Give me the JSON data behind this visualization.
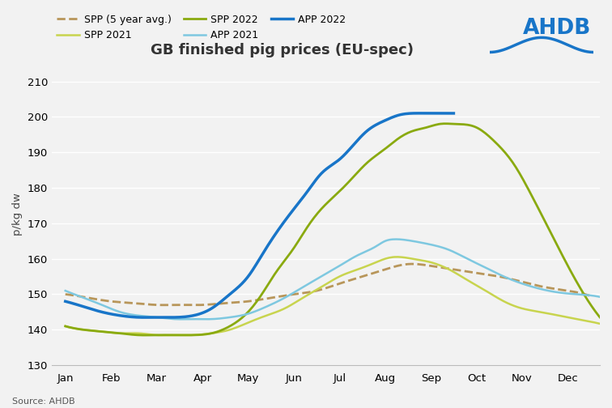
{
  "title": "GB finished pig prices (EU-spec)",
  "ylabel": "p/kg dw",
  "source": "Source: AHDB",
  "ylim": [
    130,
    215
  ],
  "yticks": [
    130,
    140,
    150,
    160,
    170,
    180,
    190,
    200,
    210
  ],
  "months": [
    "Jan",
    "Feb",
    "Mar",
    "Apr",
    "May",
    "Jun",
    "Jul",
    "Aug",
    "Sep",
    "Oct",
    "Nov",
    "Dec"
  ],
  "spp_5yr_x": [
    0,
    0.5,
    1.0,
    1.5,
    2.0,
    2.5,
    3.0,
    3.5,
    4.0,
    4.5,
    5.0,
    5.5,
    6.0,
    6.5,
    7.0,
    7.5,
    8.0,
    8.5,
    9.0,
    9.5,
    10.0,
    10.5,
    11.0,
    11.5
  ],
  "spp_5yr_y": [
    150,
    149,
    148,
    147.5,
    147,
    147,
    147,
    147.5,
    148,
    149,
    150,
    151,
    153,
    155,
    157,
    158.5,
    158,
    157,
    156,
    155,
    153.5,
    152,
    151,
    149.5
  ],
  "spp_2021_x": [
    0,
    0.4,
    0.8,
    1.2,
    1.6,
    2.0,
    2.4,
    2.8,
    3.2,
    3.6,
    4.0,
    4.4,
    4.8,
    5.2,
    5.6,
    6.0,
    6.4,
    6.8,
    7.0,
    7.2,
    7.6,
    8.0,
    8.4,
    8.8,
    9.2,
    9.6,
    10.0,
    10.4,
    10.8,
    11.2,
    11.6,
    11.9
  ],
  "spp_2021_y": [
    141,
    140,
    139.5,
    139,
    139,
    138.5,
    138.5,
    138.5,
    139,
    140,
    142,
    144,
    146,
    149,
    152,
    155,
    157,
    159,
    160,
    160.5,
    160,
    159,
    157,
    154,
    151,
    148,
    146,
    145,
    144,
    143,
    142,
    141
  ],
  "spp_2022_x": [
    0,
    0.4,
    0.8,
    1.2,
    1.6,
    2.0,
    2.4,
    2.8,
    3.2,
    3.6,
    4.0,
    4.3,
    4.6,
    5.0,
    5.3,
    5.6,
    6.0,
    6.3,
    6.6,
    7.0,
    7.3,
    7.6,
    7.9,
    8.2,
    8.5,
    9.0,
    9.4,
    9.8,
    10.2,
    10.6,
    11.0,
    11.4,
    11.8
  ],
  "spp_2022_y": [
    141,
    140,
    139.5,
    139,
    138.5,
    138.5,
    138.5,
    138.5,
    139,
    141,
    145,
    150,
    156,
    163,
    169,
    174,
    179,
    183,
    187,
    191,
    194,
    196,
    197,
    198,
    198,
    197,
    193,
    187,
    178,
    168,
    158,
    149,
    142
  ],
  "app_2021_x": [
    0,
    0.4,
    0.8,
    1.2,
    1.6,
    2.0,
    2.4,
    2.8,
    3.2,
    3.6,
    4.0,
    4.4,
    4.8,
    5.2,
    5.6,
    6.0,
    6.4,
    6.8,
    7.0,
    7.2,
    7.6,
    8.0,
    8.4,
    8.8,
    9.2,
    9.6,
    10.0,
    10.4,
    10.8,
    11.2,
    11.6,
    11.9
  ],
  "app_2021_y": [
    151,
    149,
    147,
    145,
    144,
    143.5,
    143,
    143,
    143,
    143.5,
    144.5,
    146.5,
    149,
    152,
    155,
    158,
    161,
    163.5,
    165,
    165.5,
    165,
    164,
    162.5,
    160,
    157.5,
    155,
    153,
    151.5,
    150.5,
    150,
    149.5,
    148.5
  ],
  "app_2022_x": [
    0,
    0.4,
    0.8,
    1.2,
    1.6,
    2.0,
    2.4,
    2.8,
    3.2,
    3.6,
    4.0,
    4.3,
    4.6,
    5.0,
    5.3,
    5.6,
    6.0,
    6.3,
    6.6,
    7.0,
    7.3,
    7.6,
    7.9,
    8.2,
    8.5
  ],
  "app_2022_y": [
    148,
    146.5,
    145,
    144,
    143.5,
    143.5,
    143.5,
    144,
    146,
    150,
    155,
    161,
    167,
    174,
    179,
    184,
    188,
    192,
    196,
    199,
    200.5,
    201,
    201,
    201,
    201
  ],
  "colors": {
    "spp_5yr": "#b8965a",
    "spp_2021": "#c8d44e",
    "spp_2022": "#8aaa10",
    "app_2021": "#7ec8e0",
    "app_2022": "#1875c8"
  },
  "background_color": "#f2f2f2",
  "grid_color": "#ffffff",
  "legend_labels": [
    "SPP (5 year avg.)",
    "SPP 2021",
    "SPP 2022",
    "APP 2021",
    "APP 2022"
  ]
}
